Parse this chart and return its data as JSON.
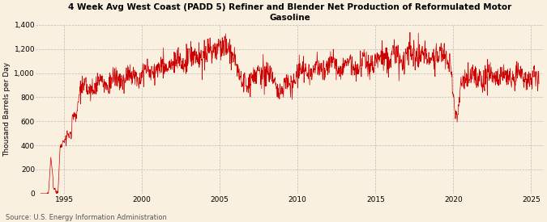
{
  "title_line1": "4 Week Avg West Coast (PADD 5) Refiner and Blender Net Production of Reformulated Motor",
  "title_line2": "Gasoline",
  "ylabel": "Thousand Barrels per Day",
  "source": "Source: U.S. Energy Information Administration",
  "line_color": "#CC0000",
  "background_color": "#FAF0E0",
  "grid_color": "#BBBBBB",
  "xlim": [
    1993.2,
    2025.8
  ],
  "ylim": [
    0,
    1400
  ],
  "yticks": [
    0,
    200,
    400,
    600,
    800,
    1000,
    1200,
    1400
  ],
  "xticks": [
    1995,
    2000,
    2005,
    2010,
    2015,
    2020,
    2025
  ]
}
